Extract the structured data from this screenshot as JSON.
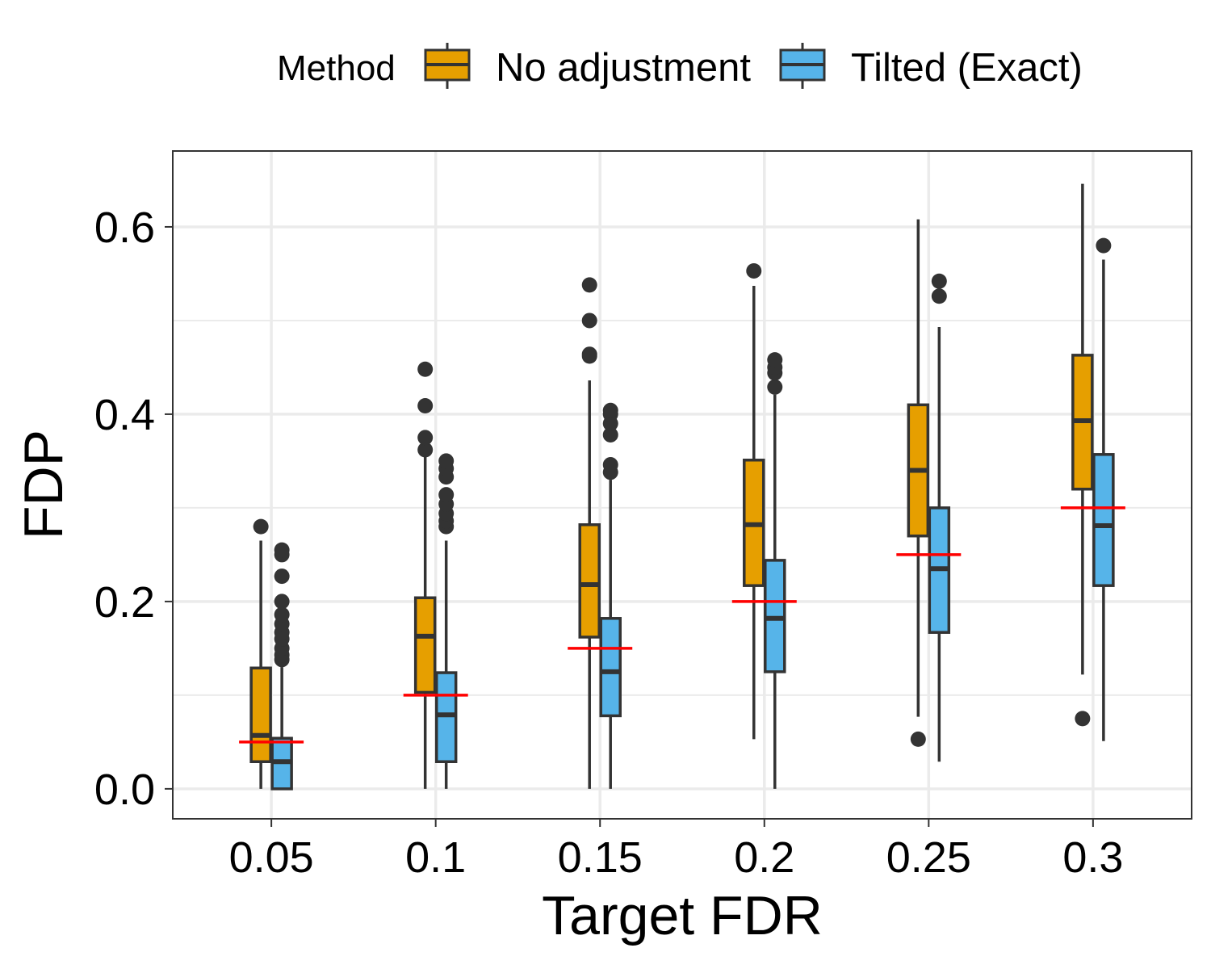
{
  "chart_data": {
    "type": "boxplot",
    "title": "",
    "xlabel": "Target FDR",
    "ylabel": "FDP",
    "ylim": [
      -0.032,
      0.681
    ],
    "yticks": [
      0.0,
      0.2,
      0.4,
      0.6
    ],
    "ytick_labels": [
      "0.0",
      "0.2",
      "0.4",
      "0.6"
    ],
    "categories": [
      "0.05",
      "0.1",
      "0.15",
      "0.2",
      "0.25",
      "0.3"
    ],
    "legend": {
      "title": "Method",
      "position": "top",
      "entries": [
        "No adjustment",
        "Tilted (Exact)"
      ]
    },
    "target_line_color": "#ff0000",
    "target_values": [
      0.05,
      0.1,
      0.15,
      0.2,
      0.25,
      0.3
    ],
    "series": [
      {
        "name": "No adjustment",
        "color": "#e69f00",
        "boxes": [
          {
            "whisker_low": 0.0,
            "q1": 0.029,
            "median": 0.057,
            "q3": 0.129,
            "whisker_high": 0.265,
            "outliers": [
              0.28
            ]
          },
          {
            "whisker_low": 0.0,
            "q1": 0.103,
            "median": 0.163,
            "q3": 0.204,
            "whisker_high": 0.355,
            "outliers": [
              0.362,
              0.375,
              0.409,
              0.448
            ]
          },
          {
            "whisker_low": 0.0,
            "q1": 0.162,
            "median": 0.218,
            "q3": 0.282,
            "whisker_high": 0.436,
            "outliers": [
              0.462,
              0.464,
              0.5,
              0.538
            ]
          },
          {
            "whisker_low": 0.053,
            "q1": 0.217,
            "median": 0.282,
            "q3": 0.351,
            "whisker_high": 0.537,
            "outliers": [
              0.553
            ]
          },
          {
            "whisker_low": 0.077,
            "q1": 0.27,
            "median": 0.34,
            "q3": 0.41,
            "whisker_high": 0.608,
            "outliers": [
              0.053
            ]
          },
          {
            "whisker_low": 0.122,
            "q1": 0.32,
            "median": 0.393,
            "q3": 0.463,
            "whisker_high": 0.646,
            "outliers": [
              0.075
            ]
          }
        ]
      },
      {
        "name": "Tilted (Exact)",
        "color": "#56b4e9",
        "boxes": [
          {
            "whisker_low": 0.0,
            "q1": 0.0,
            "median": 0.029,
            "q3": 0.054,
            "whisker_high": 0.13,
            "outliers": [
              0.138,
              0.143,
              0.15,
              0.16,
              0.167,
              0.176,
              0.186,
              0.2,
              0.227,
              0.25,
              0.255
            ]
          },
          {
            "whisker_low": 0.0,
            "q1": 0.029,
            "median": 0.079,
            "q3": 0.124,
            "whisker_high": 0.265,
            "outliers": [
              0.28,
              0.286,
              0.294,
              0.304,
              0.314,
              0.333,
              0.342,
              0.35
            ]
          },
          {
            "whisker_low": 0.0,
            "q1": 0.078,
            "median": 0.125,
            "q3": 0.182,
            "whisker_high": 0.33,
            "outliers": [
              0.338,
              0.346,
              0.378,
              0.39,
              0.4,
              0.404
            ]
          },
          {
            "whisker_low": 0.0,
            "q1": 0.125,
            "median": 0.182,
            "q3": 0.244,
            "whisker_high": 0.421,
            "outliers": [
              0.429,
              0.444,
              0.45,
              0.458
            ]
          },
          {
            "whisker_low": 0.029,
            "q1": 0.167,
            "median": 0.235,
            "q3": 0.3,
            "whisker_high": 0.493,
            "outliers": [
              0.526,
              0.542
            ]
          },
          {
            "whisker_low": 0.051,
            "q1": 0.217,
            "median": 0.281,
            "q3": 0.357,
            "whisker_high": 0.565,
            "outliers": [
              0.58
            ]
          }
        ]
      }
    ]
  }
}
